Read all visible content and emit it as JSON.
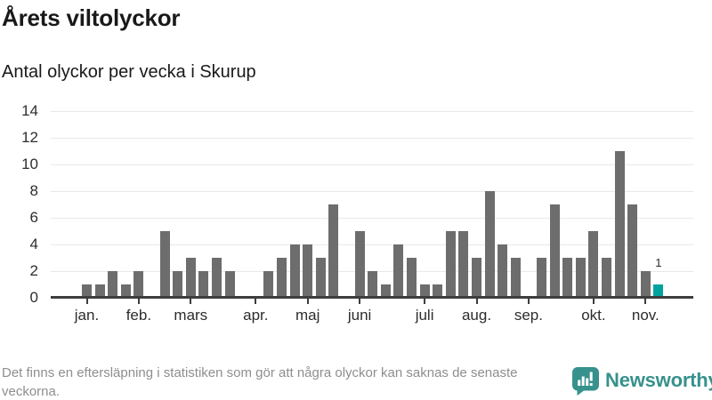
{
  "chart_data": {
    "type": "bar",
    "title": "Årets viltolyckor",
    "subtitle": "Antal olyckor per vecka i Skurup",
    "xlabel": "",
    "ylabel": "",
    "ylim": [
      0,
      14
    ],
    "yticks": [
      0,
      2,
      4,
      6,
      8,
      10,
      12,
      14
    ],
    "grid": "horizontal",
    "x_unit": "vecka",
    "weekly_values": [
      1,
      1,
      2,
      1,
      2,
      0,
      5,
      2,
      3,
      2,
      3,
      2,
      0,
      0,
      2,
      3,
      4,
      4,
      3,
      7,
      0,
      5,
      2,
      1,
      4,
      3,
      1,
      1,
      5,
      5,
      3,
      8,
      4,
      3,
      0,
      3,
      7,
      3,
      3,
      5,
      3,
      11,
      7,
      2,
      1
    ],
    "month_ticks": [
      {
        "label": "jan.",
        "week_index": 0
      },
      {
        "label": "feb.",
        "week_index": 4
      },
      {
        "label": "mars",
        "week_index": 8
      },
      {
        "label": "apr.",
        "week_index": 13
      },
      {
        "label": "maj",
        "week_index": 17
      },
      {
        "label": "juni",
        "week_index": 21
      },
      {
        "label": "juli",
        "week_index": 26
      },
      {
        "label": "aug.",
        "week_index": 30
      },
      {
        "label": "sep.",
        "week_index": 34
      },
      {
        "label": "okt.",
        "week_index": 39
      },
      {
        "label": "nov.",
        "week_index": 43
      }
    ],
    "highlight": {
      "week_index": 44,
      "value": 1,
      "label": "1"
    },
    "colors": {
      "bar": "#6d6d6d",
      "highlight": "#00a3a0",
      "grid": "#e9e9e9",
      "axis": "#3d3d3d",
      "tick_label": "#2d2d2d"
    }
  },
  "footnote": "Det finns en eftersläpning i statistiken som gör att några olyckor kan saknas de senaste veckorna.",
  "brand": {
    "name": "Newsworthy",
    "color": "#37918d",
    "icon": "newsworthy-speech-bubble-barchart-icon"
  }
}
